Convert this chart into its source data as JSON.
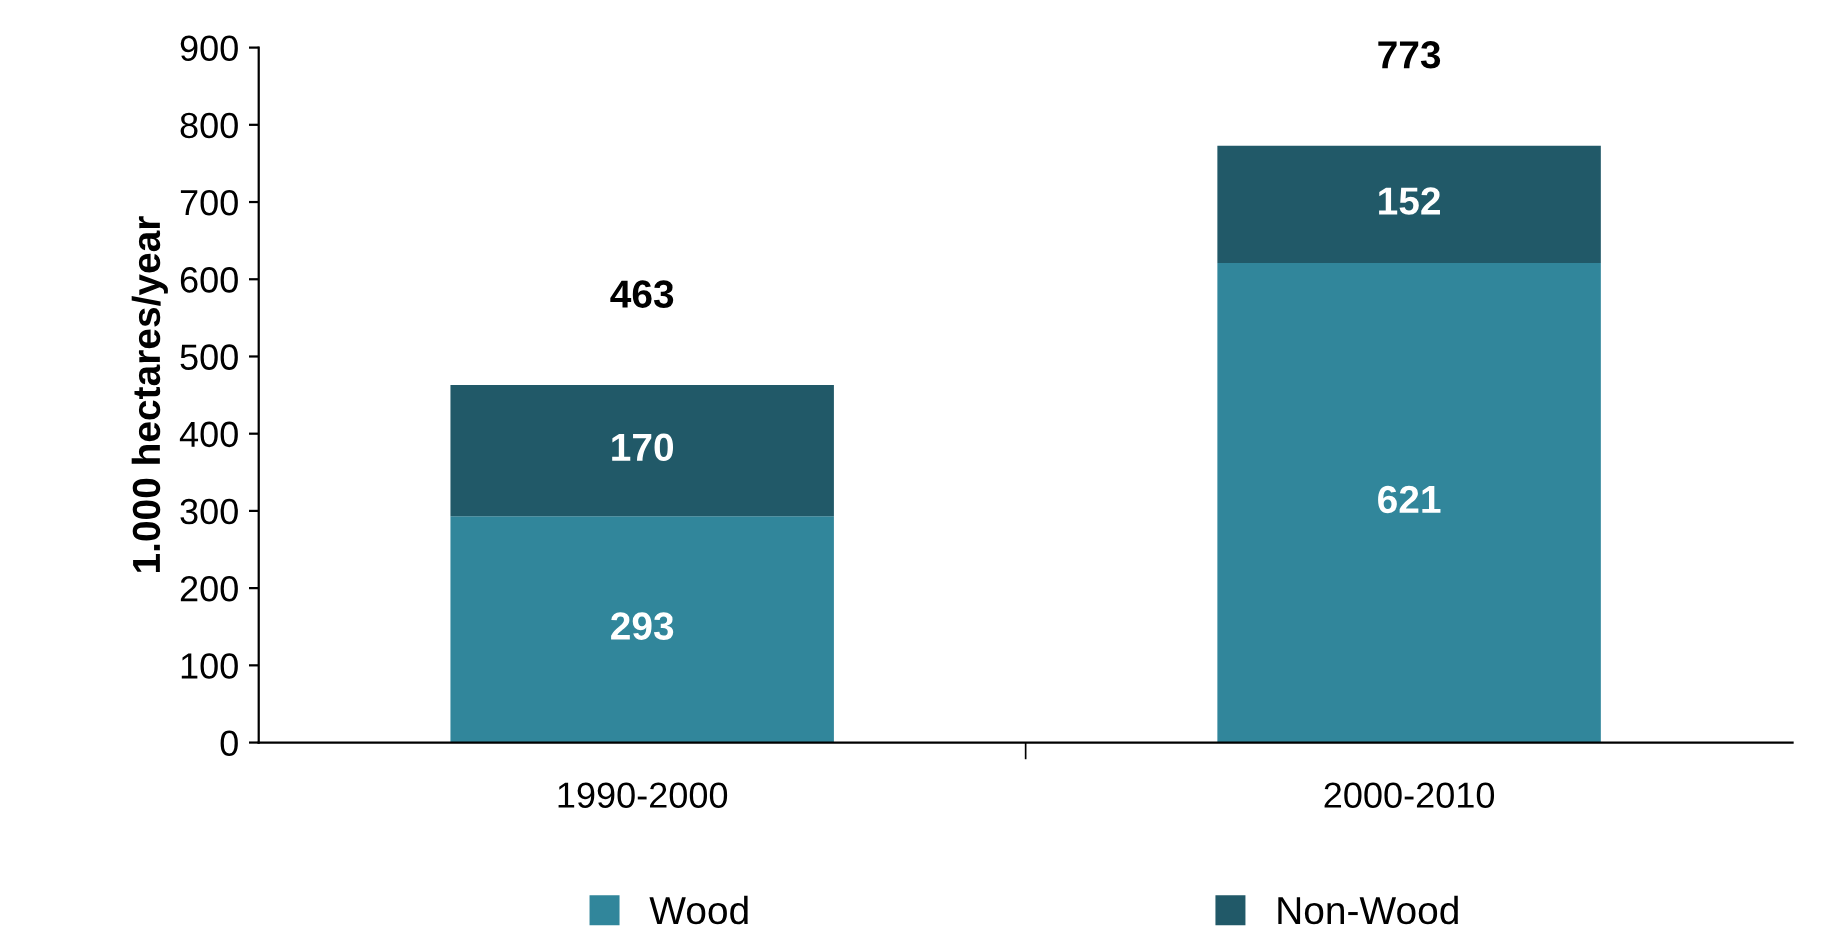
{
  "chart_data": {
    "type": "bar",
    "stacked": true,
    "ylabel": "1.000 hectares/year",
    "categories": [
      "1990-2000",
      "2000-2010"
    ],
    "series": [
      {
        "name": "Wood",
        "color": "#31869b",
        "values": [
          293,
          621
        ]
      },
      {
        "name": "Non-Wood",
        "color": "#215968",
        "values": [
          170,
          152
        ]
      }
    ],
    "ylim": [
      0,
      900
    ],
    "yticks": [
      0,
      100,
      200,
      300,
      400,
      500,
      600,
      700,
      800,
      900
    ],
    "data_labels": true,
    "totals": [
      "463",
      "773"
    ],
    "legend": "bottom",
    "grid": false
  }
}
